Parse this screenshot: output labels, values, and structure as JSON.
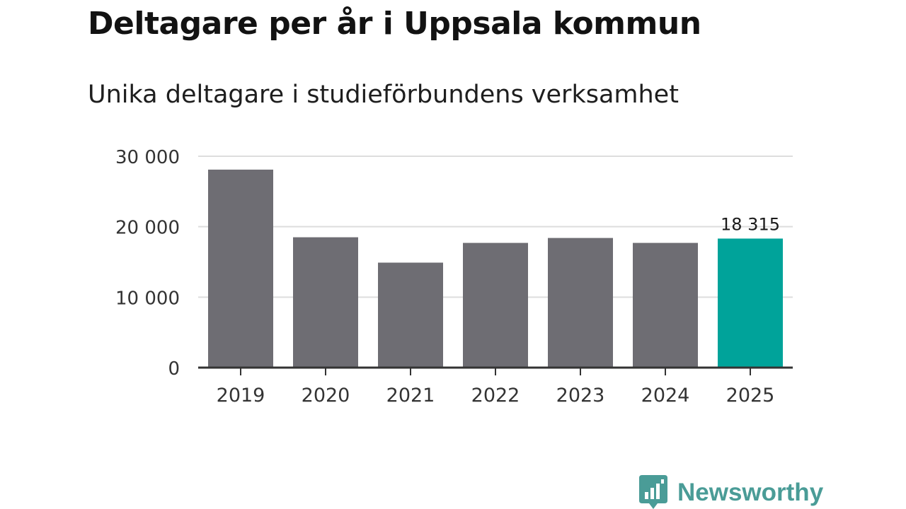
{
  "header": {
    "title": "Deltagare per år i Uppsala kommun",
    "subtitle": "Unika deltagare i studieförbundens verksamhet"
  },
  "brand": {
    "name": "Newsworthy",
    "color": "#4a9c97",
    "icon": "bar-chart-speech-bubble-icon"
  },
  "colors": {
    "bar": "#6e6d73",
    "highlight": "#00a39a",
    "grid": "#dddddd",
    "axis": "#333333"
  },
  "chart_data": {
    "type": "bar",
    "title": "Deltagare per år i Uppsala kommun",
    "subtitle": "Unika deltagare i studieförbundens verksamhet",
    "categories": [
      "2019",
      "2020",
      "2021",
      "2022",
      "2023",
      "2024",
      "2025"
    ],
    "values": [
      28100,
      18500,
      14900,
      17700,
      18400,
      17700,
      18315
    ],
    "highlight_index": 6,
    "data_labels": [
      {
        "index": 6,
        "text": "18 315"
      }
    ],
    "ylim": [
      0,
      30000
    ],
    "yticks": [
      0,
      10000,
      20000,
      30000
    ],
    "ytick_labels": [
      "0",
      "10 000",
      "20 000",
      "30 000"
    ],
    "xlabel": "",
    "ylabel": "",
    "grid": true
  }
}
